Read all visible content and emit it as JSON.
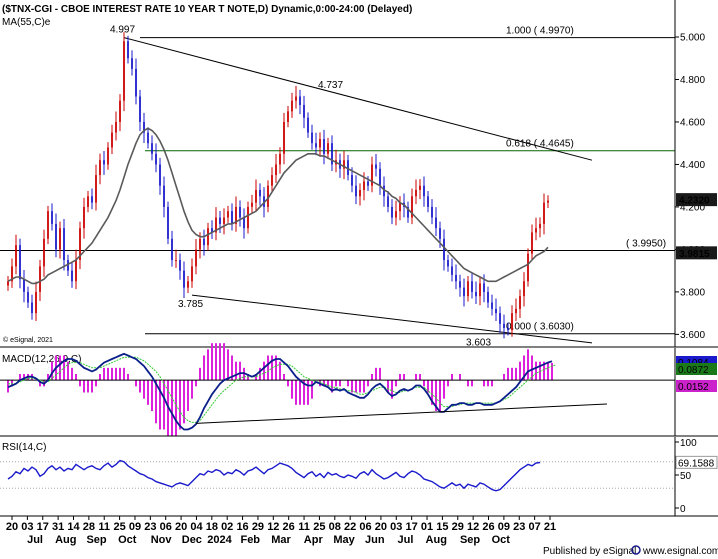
{
  "header": {
    "title": "($TNX-CGI - CBOE INTEREST RATE 10 YEAR T NOTE,D) Dynamic,0:00-24:00 (Delayed)",
    "ma_label": "MA(55,C)e",
    "copyright": "© eSignal, 2021"
  },
  "footer": {
    "publisher": "Published by eSignal",
    "site": "www.esignal.com"
  },
  "colors": {
    "bull_candle": "#cc0000",
    "bear_candle": "#1a1acc",
    "ma_line": "#5a5a5a",
    "macd_line": "#0a1f8a",
    "signal_line": "#33cc33",
    "histogram": "#dd22dd",
    "rsi_line": "#1a1acc",
    "fib_line": "#006600",
    "trend_line": "#000000",
    "price_tag_bg": "#1a1a1a",
    "macd_tag_bg": "#1a7a1a",
    "hist_tag_bg": "#cc22cc"
  },
  "chart_data": [
    {
      "type": "candlestick",
      "name": "price",
      "y_ticks": [
        "5.000",
        "4.800",
        "4.600",
        "4.400",
        "4.200",
        "4.000",
        "3.800",
        "3.600"
      ],
      "ylim": [
        3.55,
        5.08
      ],
      "annotations": [
        {
          "text": "4.997",
          "x": 29,
          "y": 4.997
        },
        {
          "text": "4.737",
          "x": 81,
          "y": 4.737
        },
        {
          "text": "3.785",
          "x": 46,
          "y": 3.785
        },
        {
          "text": "3.603",
          "x": 118,
          "y": 3.603
        }
      ],
      "levels": [
        {
          "label": "1.000 ( 4.9970)",
          "value": 4.997,
          "kind": "black"
        },
        {
          "label": "0.618 ( 4.4645)",
          "value": 4.4645,
          "kind": "fib"
        },
        {
          "label": "( 3.9950)",
          "value": 3.995,
          "kind": "black"
        },
        {
          "label": "0.000 ( 3.6030)",
          "value": 3.603,
          "kind": "black"
        }
      ],
      "trendlines": [
        {
          "from": [
            29,
            4.997
          ],
          "to": [
            136,
            4.42
          ]
        },
        {
          "from": [
            46,
            3.785
          ],
          "to": [
            136,
            3.56
          ]
        }
      ],
      "price_tags": [
        {
          "text": "4.2320",
          "value": 4.232,
          "style": "dark"
        },
        {
          "text": "3.9815",
          "value": 3.9815,
          "style": "dark"
        }
      ],
      "closes": [
        3.85,
        3.92,
        4.02,
        3.86,
        3.8,
        3.75,
        3.7,
        3.8,
        3.92,
        4.05,
        4.18,
        4.12,
        4.0,
        4.1,
        3.95,
        3.9,
        3.85,
        3.95,
        4.1,
        4.2,
        4.25,
        4.22,
        4.35,
        4.42,
        4.4,
        4.48,
        4.55,
        4.6,
        4.7,
        4.98,
        4.9,
        4.85,
        4.72,
        4.6,
        4.55,
        4.5,
        4.45,
        4.4,
        4.3,
        4.2,
        4.05,
        3.95,
        3.95,
        3.9,
        3.82,
        3.85,
        3.92,
        4.0,
        4.05,
        4.02,
        4.1,
        4.08,
        4.15,
        4.12,
        4.15,
        4.18,
        4.12,
        4.2,
        4.15,
        4.1,
        4.2,
        4.22,
        4.28,
        4.25,
        4.2,
        4.3,
        4.35,
        4.4,
        4.45,
        4.6,
        4.65,
        4.7,
        4.72,
        4.68,
        4.62,
        4.55,
        4.5,
        4.48,
        4.52,
        4.45,
        4.5,
        4.4,
        4.42,
        4.38,
        4.42,
        4.35,
        4.3,
        4.25,
        4.28,
        4.32,
        4.3,
        4.4,
        4.38,
        4.3,
        4.25,
        4.2,
        4.15,
        4.18,
        4.22,
        4.2,
        4.15,
        4.25,
        4.28,
        4.3,
        4.25,
        4.2,
        4.15,
        4.1,
        4.05,
        3.95,
        3.92,
        3.88,
        3.85,
        3.82,
        3.78,
        3.85,
        3.8,
        3.78,
        3.84,
        3.8,
        3.75,
        3.72,
        3.7,
        3.65,
        3.63,
        3.62,
        3.7,
        3.72,
        3.78,
        3.85,
        3.98,
        4.08,
        4.1,
        4.12,
        4.22,
        4.23
      ],
      "ma": [
        3.85,
        3.86,
        3.87,
        3.87,
        3.86,
        3.85,
        3.84,
        3.84,
        3.85,
        3.86,
        3.88,
        3.89,
        3.9,
        3.91,
        3.92,
        3.93,
        3.94,
        3.95,
        3.97,
        3.99,
        4.01,
        4.03,
        4.06,
        4.09,
        4.12,
        4.15,
        4.19,
        4.23,
        4.28,
        4.34,
        4.4,
        4.45,
        4.5,
        4.54,
        4.56,
        4.57,
        4.56,
        4.54,
        4.51,
        4.47,
        4.42,
        4.36,
        4.3,
        4.24,
        4.18,
        4.13,
        4.09,
        4.07,
        4.06,
        4.06,
        4.07,
        4.08,
        4.09,
        4.1,
        4.11,
        4.12,
        4.12,
        4.13,
        4.14,
        4.15,
        4.16,
        4.17,
        4.18,
        4.2,
        4.22,
        4.24,
        4.27,
        4.3,
        4.33,
        4.36,
        4.38,
        4.4,
        4.42,
        4.43,
        4.44,
        4.45,
        4.45,
        4.45,
        4.44,
        4.44,
        4.43,
        4.42,
        4.41,
        4.4,
        4.39,
        4.38,
        4.37,
        4.36,
        4.35,
        4.34,
        4.33,
        4.32,
        4.31,
        4.3,
        4.28,
        4.27,
        4.25,
        4.24,
        4.22,
        4.21,
        4.19,
        4.17,
        4.15,
        4.13,
        4.11,
        4.09,
        4.07,
        4.05,
        4.03,
        4.01,
        3.99,
        3.97,
        3.95,
        3.93,
        3.91,
        3.9,
        3.89,
        3.88,
        3.87,
        3.86,
        3.85,
        3.85,
        3.85,
        3.86,
        3.87,
        3.88,
        3.89,
        3.9,
        3.91,
        3.92,
        3.93,
        3.95,
        3.97,
        3.98,
        3.99,
        4.01
      ]
    },
    {
      "type": "line",
      "name": "macd",
      "title": "MACD(12,26,9,C)",
      "ylim": [
        -0.3,
        0.16
      ],
      "zero": 0,
      "trendline": {
        "from": [
          47,
          -0.245
        ],
        "to": [
          136,
          -0.135
        ]
      },
      "tags": [
        {
          "text": "0.1084",
          "value": 0.1084,
          "style": "dark"
        },
        {
          "text": "0.0872",
          "value": 0.0872,
          "style": "green"
        },
        {
          "text": "0.0152",
          "value": 0.0152,
          "style": "pink"
        }
      ],
      "macd": [
        -0.04,
        -0.03,
        -0.02,
        0.0,
        0.01,
        0.02,
        0.02,
        0.01,
        -0.01,
        -0.02,
        0.0,
        0.04,
        0.07,
        0.09,
        0.11,
        0.12,
        0.12,
        0.11,
        0.09,
        0.07,
        0.06,
        0.05,
        0.06,
        0.08,
        0.1,
        0.11,
        0.12,
        0.13,
        0.14,
        0.15,
        0.14,
        0.13,
        0.12,
        0.1,
        0.08,
        0.05,
        0.02,
        -0.02,
        -0.06,
        -0.1,
        -0.15,
        -0.19,
        -0.23,
        -0.26,
        -0.28,
        -0.28,
        -0.27,
        -0.25,
        -0.21,
        -0.16,
        -0.12,
        -0.08,
        -0.05,
        -0.02,
        0.0,
        0.01,
        0.02,
        0.03,
        0.04,
        0.04,
        0.03,
        0.02,
        0.03,
        0.05,
        0.07,
        0.09,
        0.11,
        0.12,
        0.12,
        0.1,
        0.08,
        0.05,
        0.02,
        0.0,
        -0.02,
        -0.03,
        -0.03,
        -0.01,
        -0.02,
        -0.03,
        -0.04,
        -0.06,
        -0.05,
        -0.06,
        -0.05,
        -0.07,
        -0.08,
        -0.09,
        -0.1,
        -0.1,
        -0.08,
        -0.05,
        -0.03,
        -0.02,
        -0.04,
        -0.07,
        -0.09,
        -0.08,
        -0.06,
        -0.05,
        -0.06,
        -0.05,
        -0.03,
        -0.03,
        -0.05,
        -0.08,
        -0.12,
        -0.15,
        -0.18,
        -0.18,
        -0.16,
        -0.14,
        -0.14,
        -0.13,
        -0.13,
        -0.14,
        -0.14,
        -0.13,
        -0.13,
        -0.14,
        -0.14,
        -0.14,
        -0.13,
        -0.12,
        -0.1,
        -0.08,
        -0.06,
        -0.04,
        -0.01,
        0.02,
        0.05,
        0.06,
        0.07,
        0.08,
        0.09,
        0.1,
        0.108
      ],
      "signal": [
        -0.02,
        -0.02,
        -0.02,
        -0.01,
        0.0,
        0.01,
        0.01,
        0.01,
        0.0,
        -0.01,
        -0.01,
        0.01,
        0.03,
        0.05,
        0.07,
        0.09,
        0.1,
        0.1,
        0.1,
        0.09,
        0.08,
        0.07,
        0.07,
        0.07,
        0.08,
        0.09,
        0.1,
        0.11,
        0.12,
        0.13,
        0.13,
        0.13,
        0.13,
        0.12,
        0.11,
        0.09,
        0.07,
        0.05,
        0.02,
        -0.02,
        -0.06,
        -0.1,
        -0.14,
        -0.18,
        -0.21,
        -0.23,
        -0.24,
        -0.24,
        -0.23,
        -0.2,
        -0.17,
        -0.14,
        -0.11,
        -0.08,
        -0.06,
        -0.04,
        -0.02,
        0.0,
        0.01,
        0.02,
        0.02,
        0.02,
        0.02,
        0.03,
        0.04,
        0.05,
        0.07,
        0.08,
        0.09,
        0.09,
        0.09,
        0.08,
        0.06,
        0.04,
        0.02,
        0.01,
        0.0,
        -0.01,
        -0.01,
        -0.02,
        -0.03,
        -0.04,
        -0.04,
        -0.05,
        -0.05,
        -0.06,
        -0.06,
        -0.07,
        -0.08,
        -0.08,
        -0.07,
        -0.06,
        -0.05,
        -0.04,
        -0.04,
        -0.05,
        -0.06,
        -0.07,
        -0.07,
        -0.06,
        -0.06,
        -0.05,
        -0.04,
        -0.04,
        -0.04,
        -0.06,
        -0.08,
        -0.1,
        -0.13,
        -0.15,
        -0.15,
        -0.15,
        -0.14,
        -0.14,
        -0.13,
        -0.13,
        -0.13,
        -0.13,
        -0.13,
        -0.13,
        -0.13,
        -0.13,
        -0.13,
        -0.12,
        -0.11,
        -0.1,
        -0.08,
        -0.06,
        -0.04,
        -0.02,
        0.0,
        0.02,
        0.04,
        0.05,
        0.06,
        0.07,
        0.08,
        0.087
      ]
    },
    {
      "type": "line",
      "name": "rsi",
      "title": "RSI(14,C)",
      "ylim": [
        0,
        100
      ],
      "y_ticks": [
        "100",
        "50",
        "0"
      ],
      "levels": [
        70,
        30
      ],
      "tags": [
        {
          "text": "69.1588",
          "value": 69.1588,
          "style": "light"
        }
      ],
      "values": [
        44,
        48,
        55,
        52,
        60,
        56,
        62,
        58,
        48,
        52,
        60,
        64,
        58,
        62,
        56,
        60,
        58,
        66,
        62,
        58,
        62,
        64,
        60,
        58,
        64,
        68,
        62,
        66,
        72,
        70,
        64,
        60,
        56,
        52,
        50,
        46,
        44,
        40,
        38,
        36,
        34,
        32,
        36,
        38,
        36,
        34,
        40,
        46,
        52,
        50,
        56,
        54,
        58,
        56,
        50,
        54,
        52,
        58,
        55,
        50,
        56,
        58,
        62,
        57,
        52,
        58,
        60,
        64,
        68,
        66,
        64,
        60,
        54,
        50,
        46,
        52,
        55,
        48,
        52,
        46,
        54,
        50,
        52,
        48,
        46,
        50,
        48,
        45,
        52,
        55,
        50,
        58,
        52,
        48,
        44,
        46,
        50,
        54,
        48,
        46,
        52,
        56,
        54,
        50,
        44,
        42,
        40,
        36,
        32,
        30,
        34,
        38,
        34,
        36,
        30,
        36,
        34,
        32,
        38,
        36,
        32,
        28,
        26,
        28,
        34,
        40,
        46,
        52,
        58,
        62,
        66,
        64,
        68,
        69
      ]
    }
  ],
  "x_axis": {
    "day_ticks": [
      "20",
      "03",
      "17",
      "31",
      "14",
      "28",
      "11",
      "25",
      "09",
      "23",
      "06",
      "20",
      "04",
      "18",
      "02",
      "16",
      "29",
      "12",
      "26",
      "11",
      "25",
      "08",
      "22",
      "06",
      "20",
      "03",
      "17",
      "01",
      "15",
      "29",
      "12",
      "26",
      "09",
      "23",
      "07",
      "21"
    ],
    "months": [
      "Jul",
      "Aug",
      "Sep",
      "Oct",
      "Nov",
      "Dec",
      "2024",
      "Feb",
      "Mar",
      "Apr",
      "May",
      "Jun",
      "Jul",
      "Aug",
      "Sep",
      "Oct"
    ]
  }
}
